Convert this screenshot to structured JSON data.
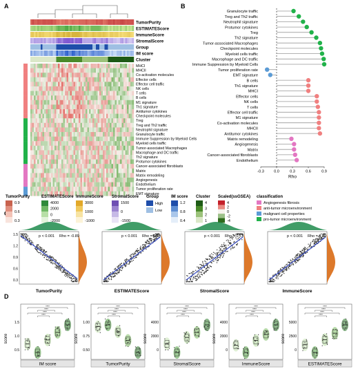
{
  "panel_labels": [
    "A",
    "B",
    "C",
    "D"
  ],
  "chart_data": [
    {
      "type": "heatmap",
      "panel": "A",
      "annotation_tracks": [
        "TumorPurity",
        "ESTIMATEScore",
        "ImmuneScore",
        "StromalScore",
        "Group",
        "IM score",
        "Cluster"
      ],
      "row_labels": [
        "MHCI",
        "MHCII",
        "Co-activation molecules",
        "Effector cells",
        "Effector cell traffic",
        "NK cells",
        "T cells",
        "B cells",
        "M1 signature",
        "Th1 signature",
        "Antitumor cytokines",
        "Checkpoint molecules",
        "Treg",
        "Treg and Th2 traffic",
        "Neutrophil signature",
        "Granulocyte traffic",
        "Immune Suppression by Myeloid Cells",
        "Myeloid cells traffic",
        "Tumor-associated Macrophages",
        "Macrophage and DC traffic",
        "Th2 signature",
        "Protumor cytokines",
        "Cancer-associated fibroblasts",
        "Matrix",
        "Matrix remodeling",
        "Angiogenesis",
        "Endothelium",
        "Tumor proliferation rate",
        "EMT signature"
      ],
      "row_classification": [
        "anti",
        "anti",
        "anti",
        "anti",
        "anti",
        "anti",
        "anti",
        "anti",
        "anti",
        "anti",
        "anti",
        "anti",
        "pro",
        "pro",
        "pro",
        "pro",
        "pro",
        "pro",
        "pro",
        "pro",
        "pro",
        "pro",
        "angio",
        "angio",
        "angio",
        "angio",
        "angio",
        "malig",
        "malig"
      ],
      "legends": {
        "TumorPurity": {
          "title": "TumorPurity",
          "ticks": [
            "0.9",
            "0.6",
            "0.3"
          ]
        },
        "ESTIMATEScore": {
          "title": "ESTIMATEScore",
          "ticks": [
            "4000",
            "2000",
            "0",
            "-2000"
          ]
        },
        "ImmuneScore": {
          "title": "ImmuneScore",
          "ticks": [
            "3000",
            "1000",
            "-1000"
          ]
        },
        "StromalScore": {
          "title": "StromalScore",
          "ticks": [
            "1500",
            "0",
            "-1500"
          ]
        },
        "Group": {
          "title": "Group",
          "levels": [
            "High",
            "Low"
          ]
        },
        "IM score": {
          "title": "IM score",
          "ticks": [
            "1.2",
            "0.8",
            "0.4"
          ]
        },
        "Cluster": {
          "title": "Cluster",
          "ticks": [
            "4",
            "3",
            "2",
            "1"
          ]
        },
        "Scaled": {
          "title": "Scaled(ssGSEA)",
          "ticks": [
            "4",
            "2",
            "0",
            "-2",
            "-4"
          ]
        },
        "classification": {
          "title": "classification",
          "entries": [
            {
              "key": "angio",
              "label": "Angiogenesis fibrosis",
              "color": "#e377c2"
            },
            {
              "key": "anti",
              "label": "anti-tumor microenvironment",
              "color": "#f08080"
            },
            {
              "key": "malig",
              "label": "malignant cell properties",
              "color": "#5b9bd5"
            },
            {
              "key": "pro",
              "label": "pro-tumor microenvironment",
              "color": "#21b24a"
            }
          ]
        }
      }
    },
    {
      "type": "lollipop",
      "panel": "B",
      "xlabel": "Rho",
      "xlim": [
        -0.3,
        0.9
      ],
      "xticks": [
        "-0.3",
        "0.0",
        "0.3",
        "0.6",
        "0.9"
      ],
      "categories": [
        "Granulocyte traffic",
        "Treg and Th2 traffic",
        "Neutrophil signature",
        "Protumor cytokines",
        "Treg",
        "Th2 signature",
        "Tumor-associated Macrophages",
        "Checkpoint molecules",
        "Myeloid cells traffic",
        "Macrophage and DC traffic",
        "Immune Suppression by Myeloid Cells",
        "Tumor proliferation rate",
        "EMT signature",
        "B cells",
        "Th1 signature",
        "MHCI",
        "Effector cells",
        "NK cells",
        "T cells",
        "Effector cell traffic",
        "M1 signature",
        "Co-activation molecules",
        "MHCII",
        "Antitumor cytokines",
        "Matrix remodeling",
        "Angiogenesis",
        "Matrix",
        "Cancer-associated fibroblasts",
        "Endothelium"
      ],
      "values": [
        0.32,
        0.42,
        0.5,
        0.57,
        0.66,
        0.75,
        0.82,
        0.84,
        0.86,
        0.89,
        0.9,
        -0.18,
        -0.12,
        0.6,
        0.6,
        0.6,
        0.76,
        0.76,
        0.78,
        0.8,
        0.8,
        0.8,
        0.8,
        0.82,
        0.28,
        0.33,
        0.33,
        0.35,
        0.38
      ],
      "classification": [
        "pro",
        "pro",
        "pro",
        "pro",
        "pro",
        "pro",
        "pro",
        "pro",
        "pro",
        "pro",
        "pro",
        "malig",
        "malig",
        "anti",
        "anti",
        "anti",
        "anti",
        "anti",
        "anti",
        "anti",
        "anti",
        "anti",
        "anti",
        "anti",
        "angio",
        "angio",
        "angio",
        "angio",
        "angio"
      ]
    },
    {
      "type": "scatter",
      "panel": "C",
      "plots": [
        {
          "xlabel": "TumorPurity",
          "p": "p < 0.001",
          "rho": "Rho = -0.89",
          "slope": -1
        },
        {
          "xlabel": "ESTIMATEScore",
          "p": "p < 0.001",
          "rho": "Rho = 0.89",
          "slope": 1
        },
        {
          "xlabel": "StromalScore",
          "p": "p < 0.001",
          "rho": "Rho = 0.73",
          "slope": 1
        },
        {
          "xlabel": "ImmuneScore",
          "p": "p < 0.001",
          "rho": "Rho = 0.89",
          "slope": 1
        }
      ],
      "yticks": [
        "1.5",
        "1.2",
        "0.9",
        "0.6",
        "0.3"
      ]
    },
    {
      "type": "box",
      "panel": "D",
      "ylabel": "score",
      "plots": [
        {
          "title": "IM score",
          "yticks": [
            "1.5",
            "1.0",
            "0.5"
          ],
          "medians": [
            0.72,
            0.55,
            0.8,
            0.95,
            1.1
          ]
        },
        {
          "title": "TumorPurity",
          "yticks": [
            "1.00",
            "0.75",
            "0.50"
          ],
          "medians": [
            0.92,
            0.94,
            0.86,
            0.76,
            0.62
          ]
        },
        {
          "title": "StromalScore",
          "yticks": [
            "4000",
            "2000",
            "0"
          ],
          "medians": [
            400,
            -300,
            900,
            1300,
            1900
          ]
        },
        {
          "title": "ImmuneScore",
          "yticks": [
            "4000",
            "2000",
            "0"
          ],
          "medians": [
            1200,
            600,
            1600,
            2100,
            2900
          ]
        },
        {
          "title": "ESTIMATEScore",
          "yticks": [
            "5000",
            "2500",
            "0"
          ],
          "medians": [
            1500,
            300,
            2300,
            3300,
            4600
          ]
        }
      ],
      "significance": "****"
    }
  ]
}
